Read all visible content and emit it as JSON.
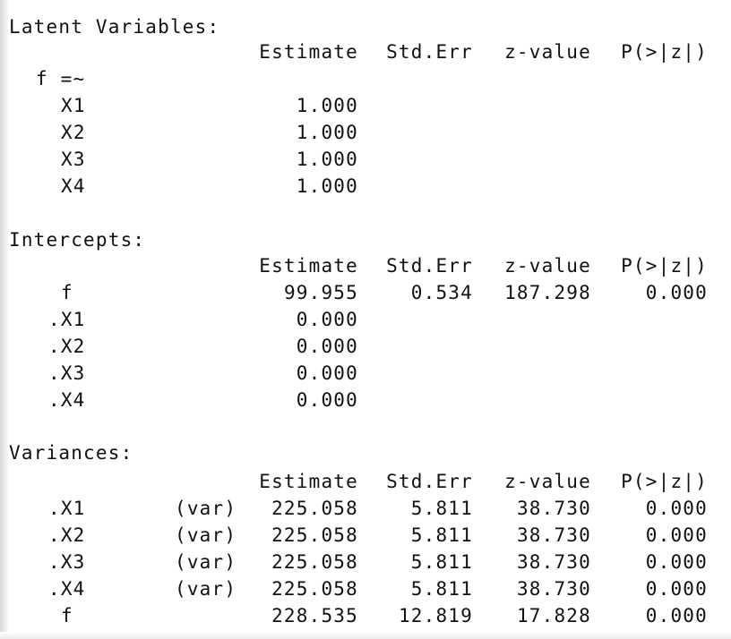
{
  "header": [
    "Estimate",
    "Std.Err",
    "z-value",
    "P(>|z|)"
  ],
  "sections": [
    {
      "title": "Latent Variables:",
      "group_label": "f =~",
      "rows": [
        {
          "label": "X1",
          "qualifier": "",
          "values": [
            "1.000",
            "",
            "",
            ""
          ]
        },
        {
          "label": "X2",
          "qualifier": "",
          "values": [
            "1.000",
            "",
            "",
            ""
          ]
        },
        {
          "label": "X3",
          "qualifier": "",
          "values": [
            "1.000",
            "",
            "",
            ""
          ]
        },
        {
          "label": "X4",
          "qualifier": "",
          "values": [
            "1.000",
            "",
            "",
            ""
          ]
        }
      ]
    },
    {
      "title": "Intercepts:",
      "rows": [
        {
          "label": "f",
          "qualifier": "",
          "values": [
            "99.955",
            "0.534",
            "187.298",
            "0.000"
          ]
        },
        {
          "label": ".X1",
          "qualifier": "",
          "values": [
            "0.000",
            "",
            "",
            ""
          ]
        },
        {
          "label": ".X2",
          "qualifier": "",
          "values": [
            "0.000",
            "",
            "",
            ""
          ]
        },
        {
          "label": ".X3",
          "qualifier": "",
          "values": [
            "0.000",
            "",
            "",
            ""
          ]
        },
        {
          "label": ".X4",
          "qualifier": "",
          "values": [
            "0.000",
            "",
            "",
            ""
          ]
        }
      ]
    },
    {
      "title": "Variances:",
      "rows": [
        {
          "label": ".X1",
          "qualifier": "(var)",
          "values": [
            "225.058",
            "5.811",
            "38.730",
            "0.000"
          ]
        },
        {
          "label": ".X2",
          "qualifier": "(var)",
          "values": [
            "225.058",
            "5.811",
            "38.730",
            "0.000"
          ]
        },
        {
          "label": ".X3",
          "qualifier": "(var)",
          "values": [
            "225.058",
            "5.811",
            "38.730",
            "0.000"
          ]
        },
        {
          "label": ".X4",
          "qualifier": "(var)",
          "values": [
            "225.058",
            "5.811",
            "38.730",
            "0.000"
          ]
        },
        {
          "label": "f",
          "qualifier": "",
          "values": [
            "228.535",
            "12.819",
            "17.828",
            "0.000"
          ]
        }
      ]
    }
  ]
}
